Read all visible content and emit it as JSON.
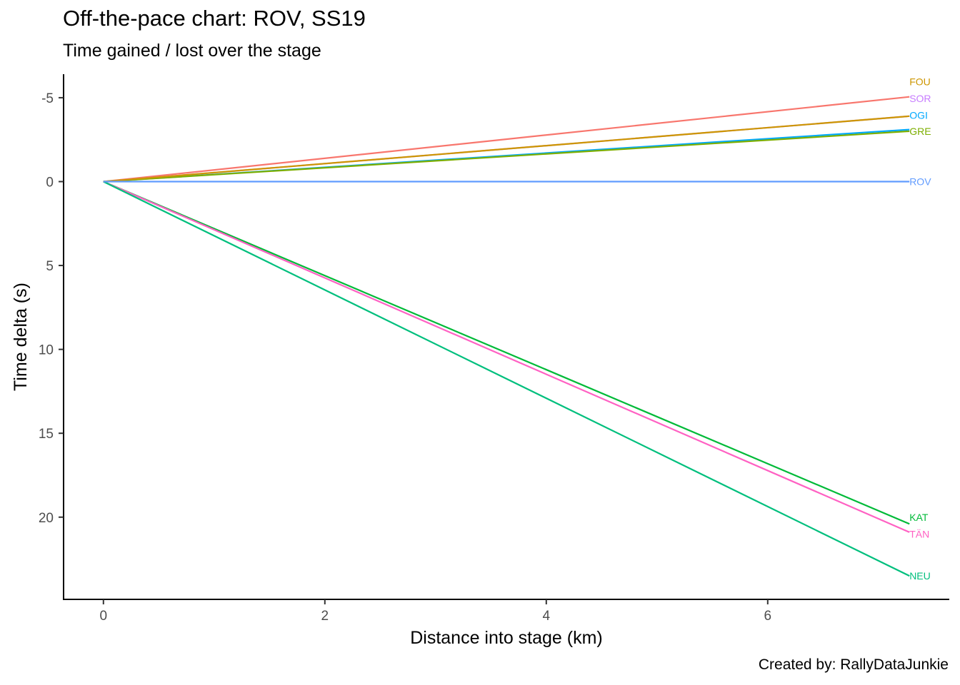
{
  "chart_data": {
    "type": "line",
    "title": "Off-the-pace chart: ROV, SS19",
    "subtitle": "Time gained / lost over the stage",
    "caption": "Created by: RallyDataJunkie",
    "xlabel": "Distance into stage (km)",
    "ylabel": "Time delta (s)",
    "xlim": [
      -0.36,
      7.64
    ],
    "ylim": [
      -6.4,
      24.9
    ],
    "y_reversed": true,
    "xticks": [
      0,
      2,
      4,
      6
    ],
    "yticks": [
      -5,
      0,
      5,
      10,
      15,
      20
    ],
    "ytick_labels": [
      "-5",
      "0",
      "5",
      "10",
      "15",
      "20"
    ],
    "grid": false,
    "legend": "none",
    "series": [
      {
        "name": "FOU",
        "color": "#F8766D",
        "x": [
          0,
          7.28
        ],
        "y": [
          0,
          -5.05
        ]
      },
      {
        "name": "SOR",
        "color": "#C77CFF",
        "x": [
          0,
          7.28
        ],
        "y": [
          0,
          -3.9
        ]
      },
      {
        "name": "OGI",
        "color": "#00A9FF",
        "x": [
          0,
          7.28
        ],
        "y": [
          0,
          -3.1
        ]
      },
      {
        "name": "GRE",
        "color": "#7CAE00",
        "x": [
          0,
          7.28
        ],
        "y": [
          0,
          -3.0
        ]
      },
      {
        "name": "ROV",
        "color": "#619CFF",
        "x": [
          0,
          7.28
        ],
        "y": [
          0,
          0
        ]
      },
      {
        "name": "KAT",
        "color": "#00BA38",
        "x": [
          0,
          7.28
        ],
        "y": [
          0,
          20.4
        ]
      },
      {
        "name": "TÄN",
        "color": "#FF61C3",
        "x": [
          0,
          7.28
        ],
        "y": [
          0,
          20.9
        ]
      },
      {
        "name": "NEU",
        "color": "#00BF7D",
        "x": [
          0,
          7.28
        ],
        "y": [
          0,
          23.5
        ]
      }
    ],
    "extra_lines": [
      {
        "color": "#CD9600",
        "x": [
          0,
          7.28
        ],
        "y": [
          0,
          -3.9
        ]
      }
    ],
    "end_labels": [
      {
        "text": "FOU",
        "color": "#CD9600",
        "y": -5.95
      },
      {
        "text": "SOR",
        "color": "#C77CFF",
        "y": -4.95
      },
      {
        "text": "OGI",
        "color": "#00A9FF",
        "y": -3.95
      },
      {
        "text": "GRE",
        "color": "#7CAE00",
        "y": -3.0
      },
      {
        "text": "ROV",
        "color": "#619CFF",
        "y": 0
      },
      {
        "text": "KAT",
        "color": "#00BA38",
        "y": 20.0
      },
      {
        "text": "TÄN",
        "color": "#FF61C3",
        "y": 21.0
      },
      {
        "text": "NEU",
        "color": "#00BF7D",
        "y": 23.5
      }
    ]
  }
}
